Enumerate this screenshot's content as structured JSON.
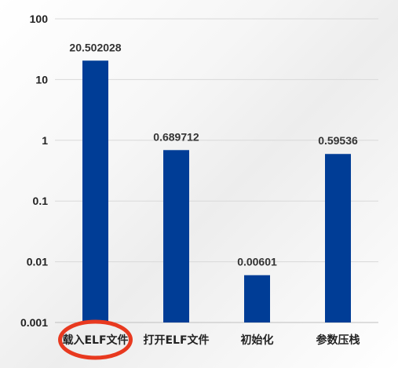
{
  "chart_data": {
    "type": "bar",
    "y_scale": "log",
    "ylim": [
      0.001,
      100
    ],
    "y_ticks": [
      "100",
      "10",
      "1",
      "0.1",
      "0.01",
      "0.001"
    ],
    "y_tick_values": [
      100,
      10,
      1,
      0.1,
      0.01,
      0.001
    ],
    "categories": [
      "载入ELF文件",
      "打开ELF文件",
      "初始化",
      "参数压栈"
    ],
    "values": [
      20.502028,
      0.689712,
      0.00601,
      0.59536
    ],
    "value_labels": [
      "20.502028",
      "0.689712",
      "0.00601",
      "0.59536"
    ],
    "grid": true,
    "legend": "none",
    "bar_color": "#003d96",
    "grid_color": "#d9d9d9",
    "highlight": {
      "category_index": 0,
      "shape": "ellipse",
      "color": "#e8391f"
    }
  }
}
